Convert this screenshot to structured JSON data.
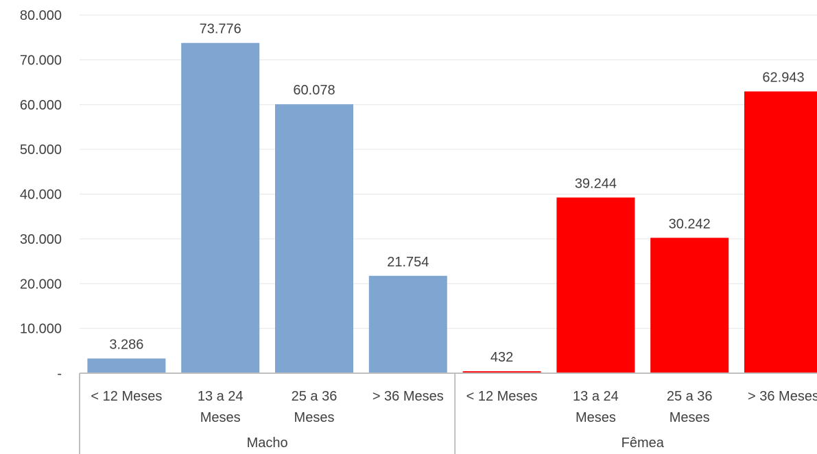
{
  "chart_data": {
    "type": "bar",
    "title": "",
    "xlabel": "",
    "ylabel": "",
    "ylim": [
      0,
      80000
    ],
    "y_ticks": [
      {
        "value": 0,
        "label": "-"
      },
      {
        "value": 10000,
        "label": "10.000"
      },
      {
        "value": 20000,
        "label": "20.000"
      },
      {
        "value": 30000,
        "label": "30.000"
      },
      {
        "value": 40000,
        "label": "40.000"
      },
      {
        "value": 50000,
        "label": "50.000"
      },
      {
        "value": 60000,
        "label": "60.000"
      },
      {
        "value": 70000,
        "label": "70.000"
      },
      {
        "value": 80000,
        "label": "80.000"
      }
    ],
    "grid": true,
    "legend": "none",
    "groups": [
      {
        "label": "Macho",
        "color": "#7FA6D0",
        "bars": [
          {
            "category": [
              "< 12 Meses"
            ],
            "value": 3286,
            "label": "3.286"
          },
          {
            "category": [
              "13 a 24",
              "Meses"
            ],
            "value": 73776,
            "label": "73.776"
          },
          {
            "category": [
              "25 a 36",
              "Meses"
            ],
            "value": 60078,
            "label": "60.078"
          },
          {
            "category": [
              "> 36 Meses"
            ],
            "value": 21754,
            "label": "21.754"
          }
        ]
      },
      {
        "label": "Fêmea",
        "color": "#FF0000",
        "bars": [
          {
            "category": [
              "< 12 Meses"
            ],
            "value": 432,
            "label": "432"
          },
          {
            "category": [
              "13 a 24",
              "Meses"
            ],
            "value": 39244,
            "label": "39.244"
          },
          {
            "category": [
              "25 a 36",
              "Meses"
            ],
            "value": 30242,
            "label": "30.242"
          },
          {
            "category": [
              "> 36 Meses"
            ],
            "value": 62943,
            "label": "62.943"
          }
        ]
      }
    ]
  }
}
